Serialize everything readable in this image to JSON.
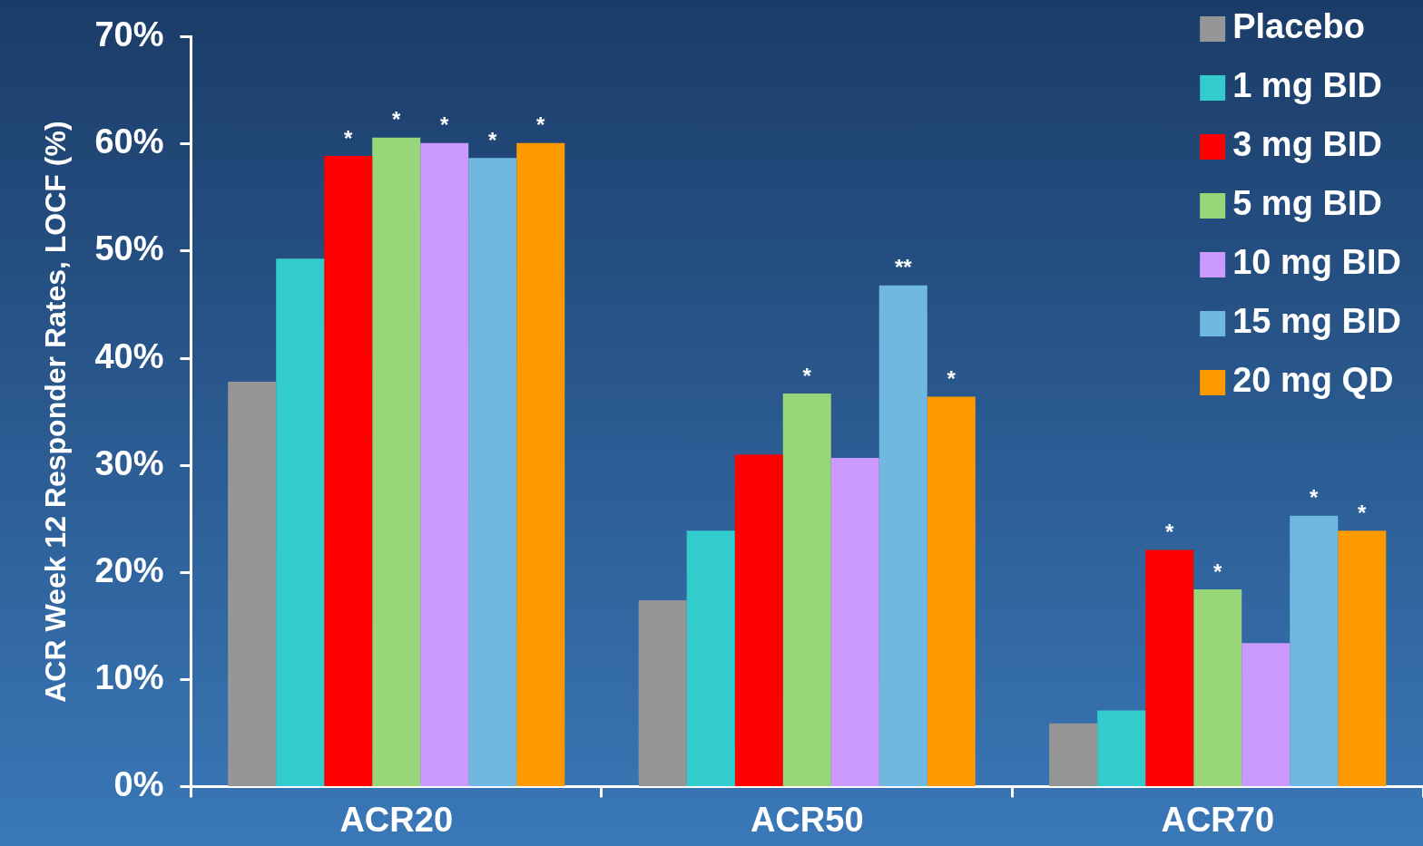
{
  "chart_data": {
    "type": "bar",
    "ylabel": "ACR Week 12 Responder Rates, LOCF (%)",
    "categories": [
      "ACR20",
      "ACR50",
      "ACR70"
    ],
    "ylim": [
      0,
      70
    ],
    "yticks": [
      {
        "value": 0,
        "label": "0%"
      },
      {
        "value": 10,
        "label": "10%"
      },
      {
        "value": 20,
        "label": "20%"
      },
      {
        "value": 30,
        "label": "30%"
      },
      {
        "value": 40,
        "label": "40%"
      },
      {
        "value": 50,
        "label": "50%"
      },
      {
        "value": 60,
        "label": "60%"
      },
      {
        "value": 70,
        "label": "70%"
      }
    ],
    "grid": false,
    "legend": "top right",
    "series": [
      {
        "name": "Placebo",
        "color": "#969696",
        "values": [
          37.8,
          17.4,
          5.9
        ]
      },
      {
        "name": "1 mg BID",
        "color": "#33cccc",
        "values": [
          49.3,
          23.9,
          7.1
        ]
      },
      {
        "name": "3 mg BID",
        "color": "#ff0000",
        "values": [
          58.9,
          31.0,
          22.1
        ],
        "value_labels": [
          "*",
          null,
          "*"
        ]
      },
      {
        "name": "5 mg BID",
        "color": "#99d67a",
        "values": [
          60.6,
          36.7,
          18.4
        ],
        "value_labels": [
          "*",
          "*",
          "*"
        ]
      },
      {
        "name": "10 mg BID",
        "color": "#cc99ff",
        "values": [
          60.1,
          30.7,
          13.4
        ],
        "value_labels": [
          "*",
          null,
          null
        ]
      },
      {
        "name": "15 mg BID",
        "color": "#70b8e0",
        "values": [
          58.7,
          46.8,
          25.3
        ],
        "value_labels": [
          "*",
          "**",
          "*"
        ]
      },
      {
        "name": "20 mg QD",
        "color": "#ff9900",
        "values": [
          60.1,
          36.4,
          23.9
        ],
        "value_labels": [
          "*",
          "*",
          "*"
        ]
      }
    ]
  }
}
